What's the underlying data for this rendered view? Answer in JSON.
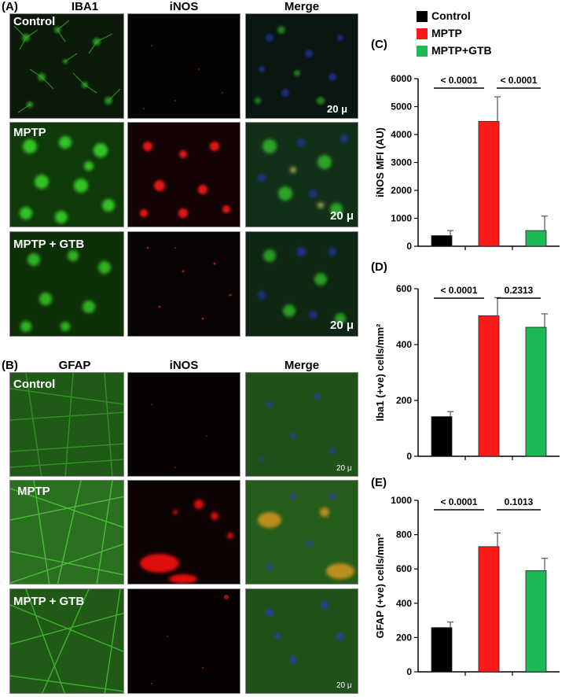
{
  "section_a": {
    "label": "(A)",
    "columns": [
      "IBA1",
      "iNOS",
      "Merge"
    ],
    "rows": [
      "Control",
      "MPTP",
      "MPTP + GTB"
    ],
    "scale_bar": "20 μ"
  },
  "section_b": {
    "label": "(B)",
    "columns": [
      "GFAP",
      "iNOS",
      "Merge"
    ],
    "rows": [
      "Control",
      "MPTP",
      "MPTP + GTB"
    ],
    "scale_bar": "20 μ"
  },
  "legend": [
    {
      "name": "Control",
      "color": "#000000"
    },
    {
      "name": "MPTP",
      "color": "#ff1a1a"
    },
    {
      "name": "MPTP+GTB",
      "color": "#1db954"
    }
  ],
  "chart_data": [
    {
      "panel": "(C)",
      "type": "bar",
      "categories": [
        "Control",
        "MPTP",
        "MPTP+GTB"
      ],
      "values": [
        380,
        4470,
        560
      ],
      "errors": [
        180,
        880,
        520
      ],
      "ylabel": "iNOS MFI (AU)",
      "ylim": [
        0,
        6000
      ],
      "yticks": [
        0,
        1000,
        2000,
        3000,
        4000,
        5000,
        6000
      ],
      "comparisons": [
        {
          "from": 0,
          "to": 1,
          "label": "< 0.0001"
        },
        {
          "from": 1,
          "to": 2,
          "label": "< 0.0001"
        }
      ]
    },
    {
      "panel": "(D)",
      "type": "bar",
      "categories": [
        "Control",
        "MPTP",
        "MPTP+GTB"
      ],
      "values": [
        142,
        503,
        462
      ],
      "errors": [
        18,
        65,
        48
      ],
      "ylabel": "Iba1 (+ve) cells/mm²",
      "ylim": [
        0,
        600
      ],
      "yticks": [
        0,
        200,
        400,
        600
      ],
      "comparisons": [
        {
          "from": 0,
          "to": 1,
          "label": "< 0.0001"
        },
        {
          "from": 1,
          "to": 2,
          "label": "0.2313"
        }
      ]
    },
    {
      "panel": "(E)",
      "type": "bar",
      "categories": [
        "Control",
        "MPTP",
        "MPTP+GTB"
      ],
      "values": [
        258,
        730,
        590
      ],
      "errors": [
        32,
        80,
        72
      ],
      "ylabel": "GFAP (+ve) cells/mm²",
      "ylim": [
        0,
        1000
      ],
      "yticks": [
        0,
        200,
        400,
        600,
        800,
        1000
      ],
      "comparisons": [
        {
          "from": 0,
          "to": 1,
          "label": "< 0.0001"
        },
        {
          "from": 1,
          "to": 2,
          "label": "0.1013"
        }
      ]
    }
  ]
}
